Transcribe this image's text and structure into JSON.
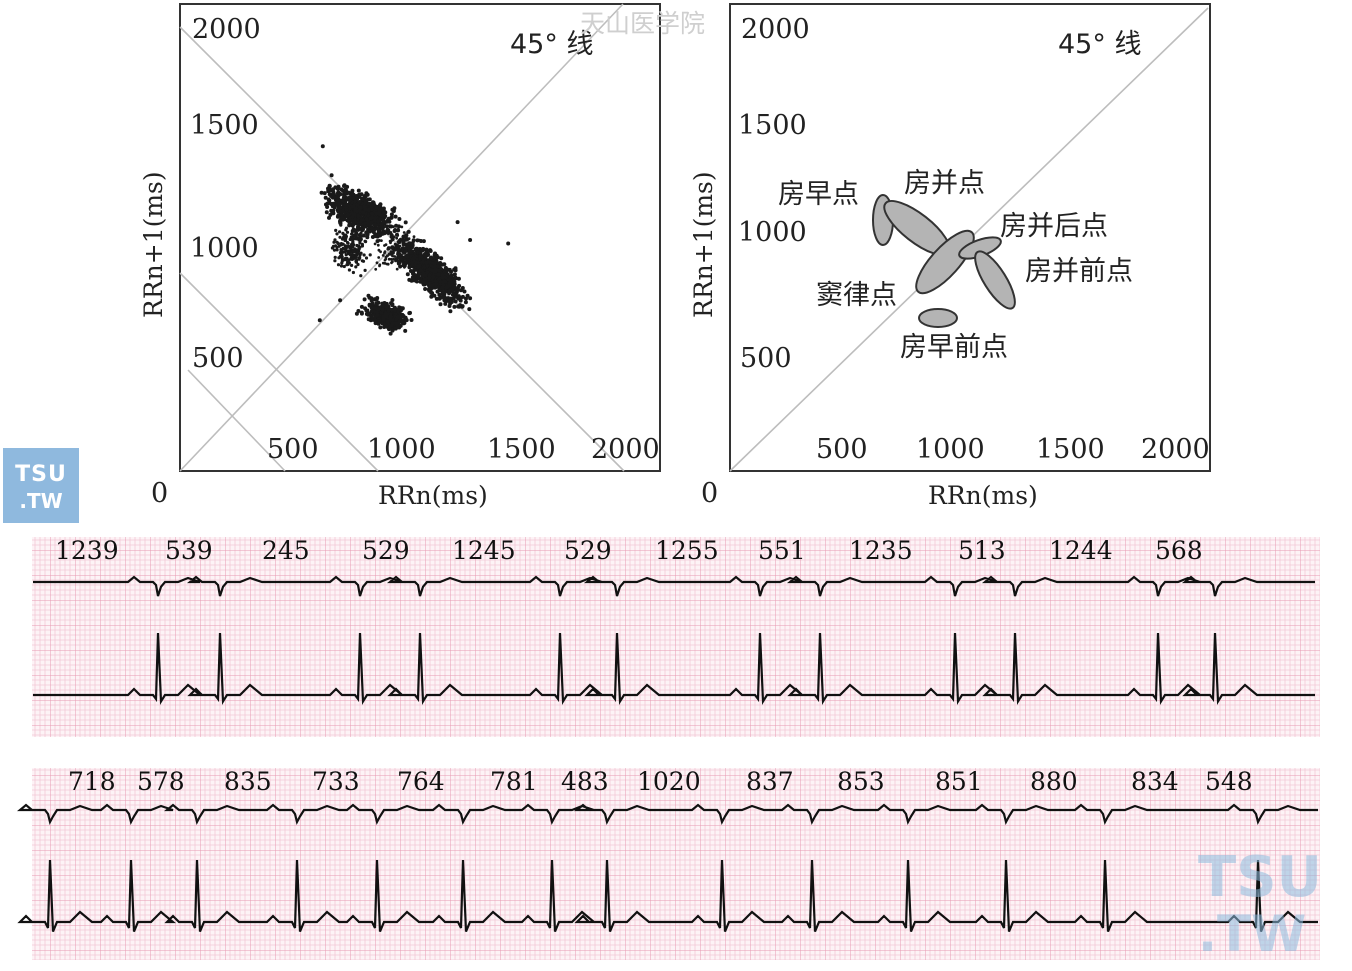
{
  "watermark": "天山医学院",
  "logo": {
    "line1": "TSU",
    "line2": ".TW"
  },
  "left_plot": {
    "line_label": "45° 线",
    "y_ticks": [
      "2000",
      "1500",
      "1000",
      "500"
    ],
    "x_ticks": [
      "500",
      "1000",
      "1500",
      "2000"
    ],
    "origin": "0",
    "ylabel": "RRn+1(ms)",
    "xlabel": "RRn(ms)"
  },
  "right_plot": {
    "line_label": "45° 线",
    "y_ticks": [
      "2000",
      "1500",
      "1000",
      "500"
    ],
    "x_ticks": [
      "500",
      "1000",
      "1500",
      "2000"
    ],
    "origin": "0",
    "ylabel": "RRn+1(ms)",
    "xlabel": "RRn(ms)",
    "clusters": [
      {
        "label": "房早点"
      },
      {
        "label": "房并点"
      },
      {
        "label": "房并后点"
      },
      {
        "label": "房并前点"
      },
      {
        "label": "窦律点"
      },
      {
        "label": "房早前点"
      }
    ]
  },
  "ecg_strip_1": {
    "rr_intervals": [
      "1239",
      "539",
      "245",
      "529",
      "1245",
      "529",
      "1255",
      "551",
      "1235",
      "513",
      "1244",
      "568"
    ]
  },
  "ecg_strip_2": {
    "rr_intervals": [
      "718",
      "578",
      "835",
      "733",
      "764",
      "781",
      "483",
      "1020",
      "837",
      "853",
      "851",
      "880",
      "834",
      "548"
    ]
  },
  "colors": {
    "grid_minor": "#f3c9d6",
    "grid_major": "#e89ab2",
    "trace": "#111111",
    "cluster": "#b4b4b4"
  }
}
